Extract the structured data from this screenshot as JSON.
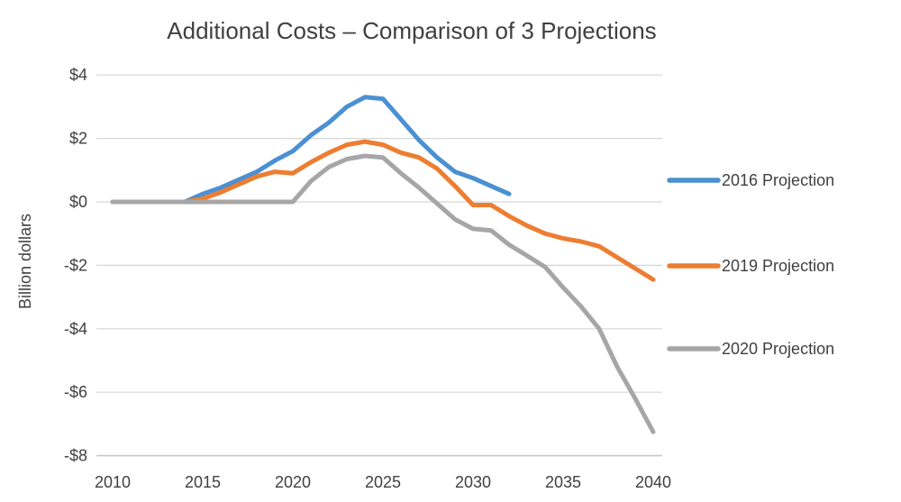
{
  "chart_data": {
    "type": "line",
    "title": "Additional Costs – Comparison of 3 Projections",
    "xlabel": "",
    "ylabel": "Billion dollars",
    "x": [
      2010,
      2011,
      2012,
      2013,
      2014,
      2015,
      2016,
      2017,
      2018,
      2019,
      2020,
      2021,
      2022,
      2023,
      2024,
      2025,
      2026,
      2027,
      2028,
      2029,
      2030,
      2031,
      2032,
      2033,
      2034,
      2035,
      2036,
      2037,
      2038,
      2039,
      2040
    ],
    "series": [
      {
        "name": "2016 Projection",
        "color": "#4A90D2",
        "values": [
          0,
          0,
          0,
          0,
          0,
          0.25,
          0.45,
          0.7,
          0.95,
          1.3,
          1.6,
          2.1,
          2.5,
          3.0,
          3.3,
          3.25,
          2.6,
          1.95,
          1.4,
          0.95,
          0.75,
          0.5,
          0.25,
          null,
          null,
          null,
          null,
          null,
          null,
          null,
          null
        ]
      },
      {
        "name": "2019 Projection",
        "color": "#ED7D31",
        "values": [
          0,
          0,
          0,
          0,
          0,
          0.1,
          0.3,
          0.55,
          0.8,
          0.95,
          0.9,
          1.25,
          1.55,
          1.8,
          1.9,
          1.8,
          1.55,
          1.4,
          1.05,
          0.5,
          -0.1,
          -0.1,
          -0.45,
          -0.75,
          -1.0,
          -1.15,
          -1.25,
          -1.4,
          -1.75,
          -2.1,
          -2.45
        ]
      },
      {
        "name": "2020 Projection",
        "color": "#A6A6A6",
        "values": [
          0,
          0,
          0,
          0,
          0,
          0,
          0,
          0,
          0,
          0,
          0,
          0.65,
          1.1,
          1.35,
          1.45,
          1.4,
          0.9,
          0.45,
          -0.05,
          -0.55,
          -0.85,
          -0.9,
          -1.35,
          -1.7,
          -2.05,
          -2.7,
          -3.3,
          -4.0,
          -5.2,
          -6.2,
          -7.25
        ]
      }
    ],
    "xlim": [
      2010,
      2040
    ],
    "ylim": [
      -8,
      4
    ],
    "xticks": [
      2010,
      2015,
      2020,
      2025,
      2030,
      2035,
      2040
    ],
    "yticks": [
      4,
      2,
      0,
      -2,
      -4,
      -6,
      -8
    ],
    "ytick_labels": [
      "$4",
      "$2",
      "$0",
      "-$2",
      "-$4",
      "-$6",
      "-$8"
    ],
    "xtick_labels": [
      "2010",
      "2015",
      "2020",
      "2025",
      "2030",
      "2035",
      "2040"
    ],
    "grid": true,
    "gridline_color": "#D6D6D6",
    "axis_text_color": "#404040",
    "legend_position": "right",
    "legend_entries": [
      "2016 Projection",
      "2019 Projection",
      "2020 Projection"
    ]
  }
}
